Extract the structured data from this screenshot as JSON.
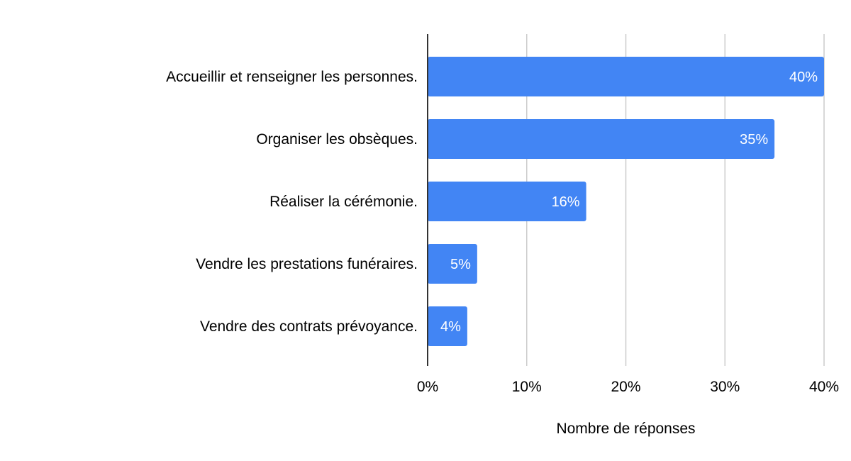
{
  "chart_data": {
    "type": "bar",
    "orientation": "horizontal",
    "categories": [
      "Accueillir et renseigner les personnes.",
      "Organiser les obsèques.",
      "Réaliser la cérémonie.",
      "Vendre les prestations funéraires.",
      "Vendre des contrats prévoyance."
    ],
    "values": [
      40,
      35,
      16,
      5,
      4
    ],
    "data_labels": [
      "40%",
      "35%",
      "16%",
      "5%",
      "4%"
    ],
    "title": "",
    "xlabel": "Nombre de réponses",
    "ylabel": "",
    "xlim": [
      0,
      40
    ],
    "x_ticks": [
      0,
      10,
      20,
      30,
      40
    ],
    "x_tick_labels": [
      "0%",
      "10%",
      "20%",
      "30%",
      "40%"
    ],
    "grid": "vertical",
    "legend": "none",
    "colors": {
      "bar": "#4285f4",
      "grid": "#cccccc",
      "axis": "#333333"
    }
  }
}
